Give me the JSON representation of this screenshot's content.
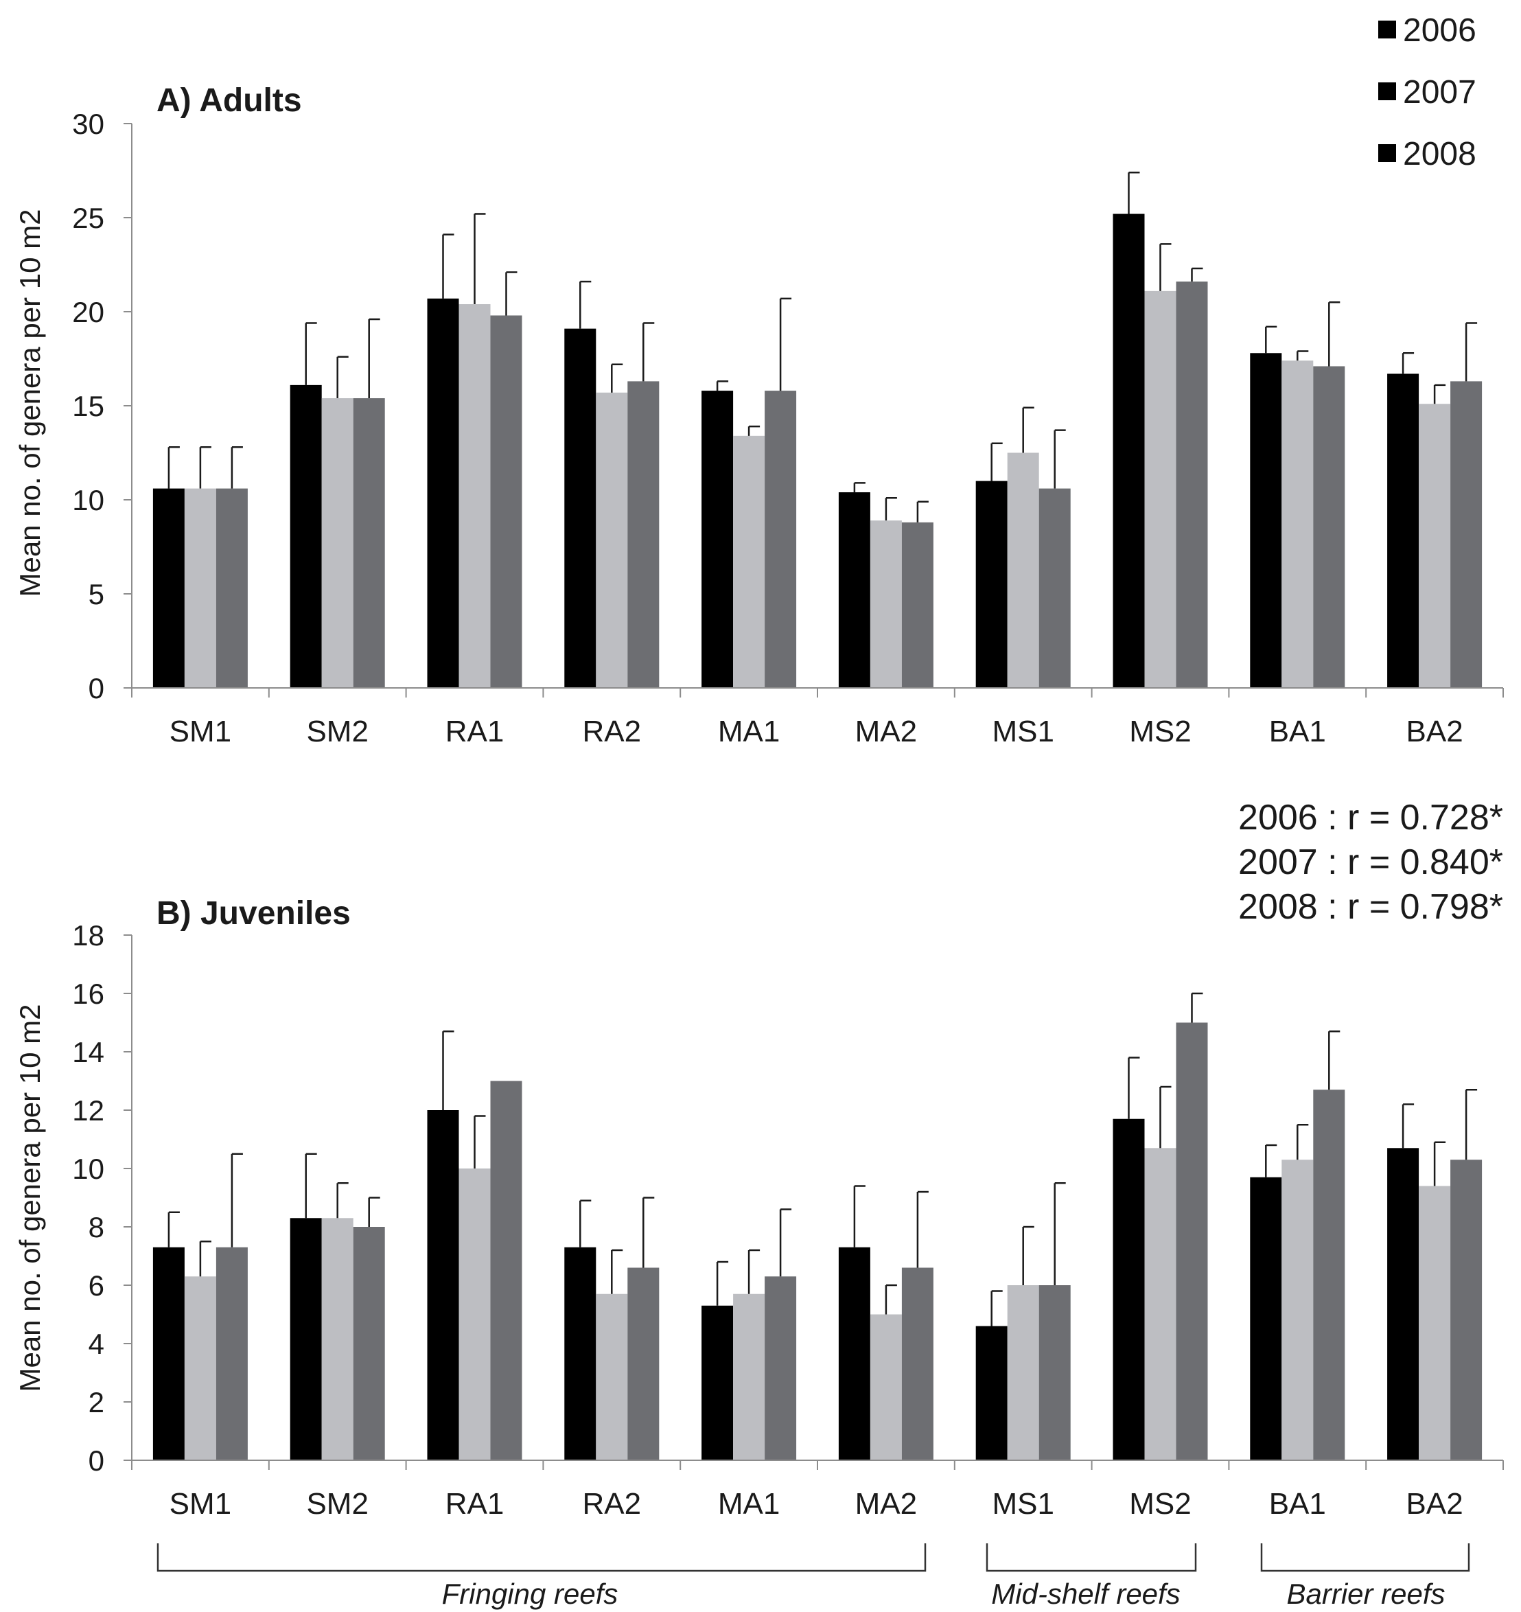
{
  "legend": [
    {
      "label": "2006",
      "color": "#000000"
    },
    {
      "label": "2007",
      "color": "#bdbec2"
    },
    {
      "label": "2008",
      "color": "#6d6e72"
    }
  ],
  "stats": [
    "2006 : r = 0.728*",
    "2007 : r = 0.840*",
    "2008 : r = 0.798*"
  ],
  "groups": [
    {
      "label": "Fringing reefs",
      "from": "SM1",
      "to": "MA2"
    },
    {
      "label": "Mid-shelf reefs",
      "from": "MS1",
      "to": "MS2"
    },
    {
      "label": "Barrier reefs",
      "from": "BA1",
      "to": "BA2"
    }
  ],
  "chart_data": [
    {
      "type": "bar",
      "title": "A) Adults",
      "ylabel": "Mean no. of genera per 10 m2",
      "ylim": [
        0,
        30
      ],
      "yticks": [
        0,
        5,
        10,
        15,
        20,
        25,
        30
      ],
      "categories": [
        "SM1",
        "SM2",
        "RA1",
        "RA2",
        "MA1",
        "MA2",
        "MS1",
        "MS2",
        "BA1",
        "BA2"
      ],
      "series": [
        {
          "name": "2006",
          "values": [
            10.6,
            16.1,
            20.7,
            19.1,
            15.8,
            10.4,
            11.0,
            25.2,
            17.8,
            16.7
          ],
          "errors": [
            2.2,
            3.3,
            3.4,
            2.5,
            0.5,
            0.5,
            2.0,
            2.2,
            1.4,
            1.1
          ]
        },
        {
          "name": "2007",
          "values": [
            10.6,
            15.4,
            20.4,
            15.7,
            13.4,
            8.9,
            12.5,
            21.1,
            17.4,
            15.1
          ],
          "errors": [
            2.2,
            2.2,
            4.8,
            1.5,
            0.5,
            1.2,
            2.4,
            2.5,
            0.5,
            1.0
          ]
        },
        {
          "name": "2008",
          "values": [
            10.6,
            15.4,
            19.8,
            16.3,
            15.8,
            8.8,
            10.6,
            21.6,
            17.1,
            16.3
          ],
          "errors": [
            2.2,
            4.2,
            2.3,
            3.1,
            4.9,
            1.1,
            3.1,
            0.7,
            3.4,
            3.1
          ]
        }
      ]
    },
    {
      "type": "bar",
      "title": "B) Juveniles",
      "ylabel": "Mean no. of genera per 10 m2",
      "ylim": [
        0,
        18
      ],
      "yticks": [
        0,
        2,
        4,
        6,
        8,
        10,
        12,
        14,
        16,
        18
      ],
      "categories": [
        "SM1",
        "SM2",
        "RA1",
        "RA2",
        "MA1",
        "MA2",
        "MS1",
        "MS2",
        "BA1",
        "BA2"
      ],
      "series": [
        {
          "name": "2006",
          "values": [
            7.3,
            8.3,
            12.0,
            7.3,
            5.3,
            7.3,
            4.6,
            11.7,
            9.7,
            10.7
          ],
          "errors": [
            1.2,
            2.2,
            2.7,
            1.6,
            1.5,
            2.1,
            1.2,
            2.1,
            1.1,
            1.5
          ]
        },
        {
          "name": "2007",
          "values": [
            6.3,
            8.3,
            10.0,
            5.7,
            5.7,
            5.0,
            6.0,
            10.7,
            10.3,
            9.4
          ],
          "errors": [
            1.2,
            1.2,
            1.8,
            1.5,
            1.5,
            1.0,
            2.0,
            2.1,
            1.2,
            1.5
          ]
        },
        {
          "name": "2008",
          "values": [
            7.3,
            8.0,
            13.0,
            6.6,
            6.3,
            6.6,
            6.0,
            15.0,
            12.7,
            10.3
          ],
          "errors": [
            3.2,
            1.0,
            0.0,
            2.4,
            2.3,
            2.6,
            3.5,
            1.0,
            2.0,
            2.4
          ]
        }
      ]
    }
  ]
}
